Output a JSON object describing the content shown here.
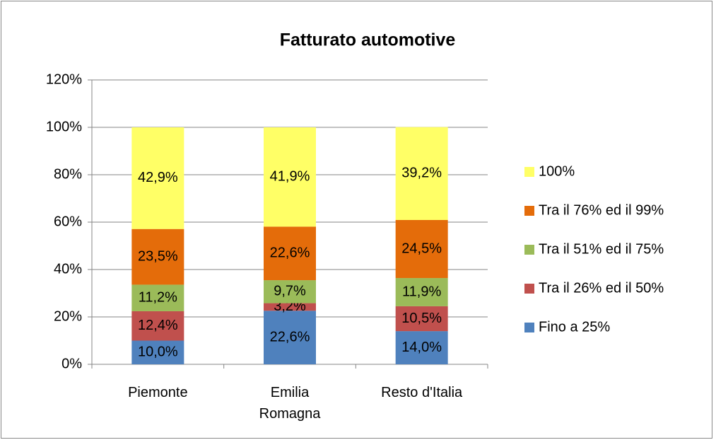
{
  "chart_data": {
    "type": "stacked_bar",
    "title": "Fatturato automotive",
    "categories": [
      "Piemonte",
      "Emilia Romagna",
      "Resto d'Italia"
    ],
    "series": [
      {
        "name": "Fino a 25%",
        "color": "#4f81bd",
        "values": [
          10.0,
          22.6,
          14.0
        ],
        "value_labels": [
          "10,0%",
          "22,6%",
          "14,0%"
        ]
      },
      {
        "name": "Tra il 26% ed il 50%",
        "color": "#c0504d",
        "values": [
          12.4,
          3.2,
          10.5
        ],
        "value_labels": [
          "12,4%",
          "3,2%",
          "10,5%"
        ]
      },
      {
        "name": "Tra il 51% ed il 75%",
        "color": "#9bbb59",
        "values": [
          11.2,
          9.7,
          11.9
        ],
        "value_labels": [
          "11,2%",
          "9,7%",
          "11,9%"
        ]
      },
      {
        "name": "Tra il 76% ed il 99%",
        "color": "#e46c0a",
        "values": [
          23.5,
          22.6,
          24.5
        ],
        "value_labels": [
          "23,5%",
          "22,6%",
          "24,5%"
        ]
      },
      {
        "name": "100%",
        "color": "#ffff66",
        "values": [
          42.9,
          41.9,
          39.2
        ],
        "value_labels": [
          "42,9%",
          "41,9%",
          "39,2%"
        ]
      }
    ],
    "ylim": [
      0,
      120
    ],
    "yticks": [
      {
        "value": 0,
        "label": "0%"
      },
      {
        "value": 20,
        "label": "20%"
      },
      {
        "value": 40,
        "label": "40%"
      },
      {
        "value": 60,
        "label": "60%"
      },
      {
        "value": 80,
        "label": "80%"
      },
      {
        "value": 100,
        "label": "100%"
      },
      {
        "value": 120,
        "label": "120%"
      }
    ],
    "grid": true,
    "legend": "right"
  }
}
